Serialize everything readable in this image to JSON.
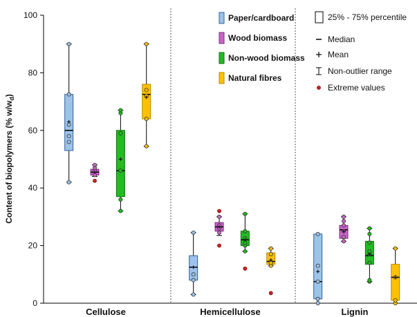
{
  "chart_data": {
    "type": "box",
    "ylabel": "Content of biopolymers (% w/w",
    "ylabel_sub": "d",
    "ylabel_close": ")",
    "ylim": [
      0,
      100
    ],
    "yticks": [
      0,
      20,
      40,
      60,
      80,
      100
    ],
    "grid": false,
    "legend_position": "top-right",
    "categories": [
      "Cellulose",
      "Hemicellulose",
      "Lignin"
    ],
    "series": [
      {
        "name": "Paper/cardboard",
        "color": "#9dc3e6",
        "edge": "#2e5f9e"
      },
      {
        "name": "Wood biomass",
        "color": "#c964c9",
        "edge": "#7a2b7a"
      },
      {
        "name": "Non-wood biomass",
        "color": "#22bb22",
        "edge": "#0f6e0f"
      },
      {
        "name": "Natural fibres",
        "color": "#ffc000",
        "edge": "#b58700"
      }
    ],
    "stats_legend": [
      "25% - 75% percentile",
      "Median",
      "Mean",
      "Non-outlier range",
      "Extreme values"
    ],
    "boxes": [
      {
        "category": "Cellulose",
        "series": "Paper/cardboard",
        "q1": 53,
        "median": 60,
        "q3": 72.5,
        "mean": 63,
        "whisker_low": 42,
        "whisker_high": 90,
        "points": [
          42,
          56,
          58,
          62,
          72.5,
          90
        ],
        "extremes": []
      },
      {
        "category": "Cellulose",
        "series": "Wood biomass",
        "q1": 44.5,
        "median": 45.5,
        "q3": 46.5,
        "mean": 45.5,
        "whisker_low": 44,
        "whisker_high": 48,
        "points": [
          44.5,
          46,
          47,
          48
        ],
        "extremes": [
          42.5
        ]
      },
      {
        "category": "Cellulose",
        "series": "Non-wood biomass",
        "q1": 37,
        "median": 46,
        "q3": 60,
        "mean": 50,
        "whisker_low": 32,
        "whisker_high": 67,
        "points": [
          32,
          36,
          46,
          59,
          66,
          67
        ],
        "extremes": []
      },
      {
        "category": "Cellulose",
        "series": "Natural fibres",
        "q1": 64,
        "median": 72.5,
        "q3": 76,
        "mean": 71.5,
        "whisker_low": 54.5,
        "whisker_high": 90,
        "points": [
          54.5,
          64,
          72,
          74,
          90
        ],
        "extremes": []
      },
      {
        "category": "Hemicellulose",
        "series": "Paper/cardboard",
        "q1": 8,
        "median": 12.5,
        "q3": 16.5,
        "mean": 12.5,
        "whisker_low": 3,
        "whisker_high": 24.5,
        "points": [
          3,
          8,
          10,
          24.5
        ],
        "extremes": []
      },
      {
        "category": "Hemicellulose",
        "series": "Wood biomass",
        "q1": 25,
        "median": 26.5,
        "q3": 28,
        "mean": 26.5,
        "whisker_low": 23.5,
        "whisker_high": 30,
        "points": [
          24.5,
          26,
          27,
          30
        ],
        "extremes": [
          20,
          32
        ]
      },
      {
        "category": "Hemicellulose",
        "series": "Non-wood biomass",
        "q1": 20,
        "median": 22,
        "q3": 25,
        "mean": 22,
        "whisker_low": 18,
        "whisker_high": 31,
        "points": [
          18,
          20,
          21,
          22.5,
          25,
          31
        ],
        "extremes": [
          12
        ]
      },
      {
        "category": "Hemicellulose",
        "series": "Natural fibres",
        "q1": 13.5,
        "median": 14.5,
        "q3": 17.5,
        "mean": 15,
        "whisker_low": 13,
        "whisker_high": 19,
        "points": [
          13,
          14,
          17,
          19
        ],
        "extremes": [
          3.5
        ]
      },
      {
        "category": "Lignin",
        "series": "Paper/cardboard",
        "q1": 1.5,
        "median": 7.5,
        "q3": 24,
        "mean": 11,
        "whisker_low": 0,
        "whisker_high": 24,
        "points": [
          0,
          1.5,
          7.5,
          13,
          24
        ],
        "extremes": []
      },
      {
        "category": "Lignin",
        "series": "Wood biomass",
        "q1": 22.5,
        "median": 25.5,
        "q3": 27,
        "mean": 25,
        "whisker_low": 21.5,
        "whisker_high": 30,
        "points": [
          21.5,
          23,
          25,
          27,
          28.5,
          30
        ],
        "extremes": []
      },
      {
        "category": "Lignin",
        "series": "Non-wood biomass",
        "q1": 13.5,
        "median": 16.5,
        "q3": 21.5,
        "mean": 17,
        "whisker_low": 7.5,
        "whisker_high": 26,
        "points": [
          7.5,
          8,
          14,
          17,
          18,
          21,
          24,
          26
        ],
        "extremes": []
      },
      {
        "category": "Lignin",
        "series": "Natural fibres",
        "q1": 1,
        "median": 9,
        "q3": 13.5,
        "mean": 9,
        "whisker_low": 0,
        "whisker_high": 19,
        "points": [
          0,
          1,
          9,
          19
        ],
        "extremes": []
      }
    ]
  }
}
